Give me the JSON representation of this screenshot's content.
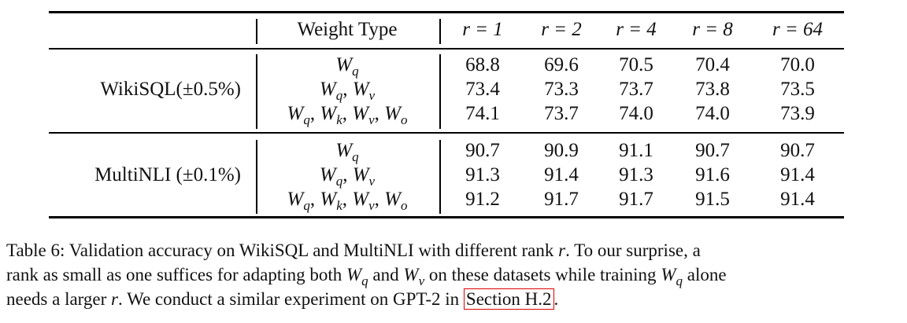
{
  "table": {
    "header": {
      "weight_type": "Weight Type",
      "ranks": [
        "r = 1",
        "r = 2",
        "r = 4",
        "r = 8",
        "r = 64"
      ]
    },
    "groups": [
      {
        "dataset": "WikiSQL(±0.5%)",
        "rows": [
          {
            "weights": [
              "q"
            ],
            "values": [
              "68.8",
              "69.6",
              "70.5",
              "70.4",
              "70.0"
            ]
          },
          {
            "weights": [
              "q",
              "v"
            ],
            "values": [
              "73.4",
              "73.3",
              "73.7",
              "73.8",
              "73.5"
            ]
          },
          {
            "weights": [
              "q",
              "k",
              "v",
              "o"
            ],
            "values": [
              "74.1",
              "73.7",
              "74.0",
              "74.0",
              "73.9"
            ]
          }
        ]
      },
      {
        "dataset": "MultiNLI (±0.1%)",
        "rows": [
          {
            "weights": [
              "q"
            ],
            "values": [
              "90.7",
              "90.9",
              "91.1",
              "90.7",
              "90.7"
            ]
          },
          {
            "weights": [
              "q",
              "v"
            ],
            "values": [
              "91.3",
              "91.4",
              "91.3",
              "91.6",
              "91.4"
            ]
          },
          {
            "weights": [
              "q",
              "k",
              "v",
              "o"
            ],
            "values": [
              "91.2",
              "91.7",
              "91.7",
              "91.5",
              "91.4"
            ]
          }
        ]
      }
    ]
  },
  "caption": {
    "lines": [
      [
        {
          "t": "Table 6: Validation accuracy on WikiSQL and MultiNLI with different rank "
        },
        {
          "m": "r"
        },
        {
          "t": ".  To our surprise, a"
        }
      ],
      [
        {
          "t": "rank as small as one suffices for adapting both "
        },
        {
          "m": "W",
          "s": "q"
        },
        {
          "t": " and "
        },
        {
          "m": "W",
          "s": "v"
        },
        {
          "t": " on these datasets while training "
        },
        {
          "m": "W",
          "s": "q"
        },
        {
          "t": " alone"
        }
      ],
      [
        {
          "t": "needs a larger "
        },
        {
          "m": "r"
        },
        {
          "t": ". We conduct a similar experiment on GPT-2 in "
        },
        {
          "link": "Section H.2"
        },
        {
          "t": "."
        }
      ]
    ]
  },
  "colors": {
    "link_box": "#e00000"
  }
}
